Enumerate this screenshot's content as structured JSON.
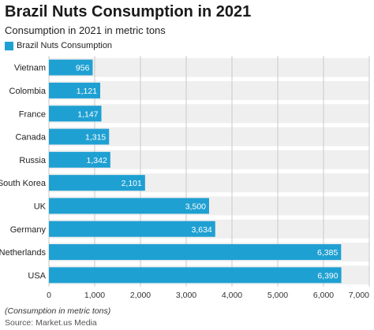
{
  "chart_data": {
    "type": "bar",
    "orientation": "horizontal",
    "title": "Brazil Nuts Consumption in 2021",
    "subtitle": "Consumption in 2021 in metric tons",
    "legend": "Brazil Nuts Consumption",
    "legend_position": "top-left",
    "categories": [
      "Vietnam",
      "Colombia",
      "France",
      "Canada",
      "Russia",
      "South Korea",
      "UK",
      "Germany",
      "Netherlands",
      "USA"
    ],
    "series": [
      {
        "name": "Brazil Nuts Consumption",
        "values": [
          956,
          1121,
          1147,
          1315,
          1342,
          2101,
          3500,
          3634,
          6385,
          6390
        ],
        "labels": [
          "956",
          "1,121",
          "1,147",
          "1,315",
          "1,342",
          "2,101",
          "3,500",
          "3,634",
          "6,385",
          "6,390"
        ]
      }
    ],
    "x_ticks": [
      "0",
      "1,000",
      "2,000",
      "3,000",
      "4,000",
      "5,000",
      "6,000",
      "7,000"
    ],
    "xlim": [
      0,
      7000
    ],
    "grid": true,
    "note": "(Consumption in metric tons)",
    "source": "Source: Market.us Media",
    "colors": {
      "bar": "#1fa0d2",
      "band": "#efefef",
      "grid": "#c8c8c8"
    }
  }
}
